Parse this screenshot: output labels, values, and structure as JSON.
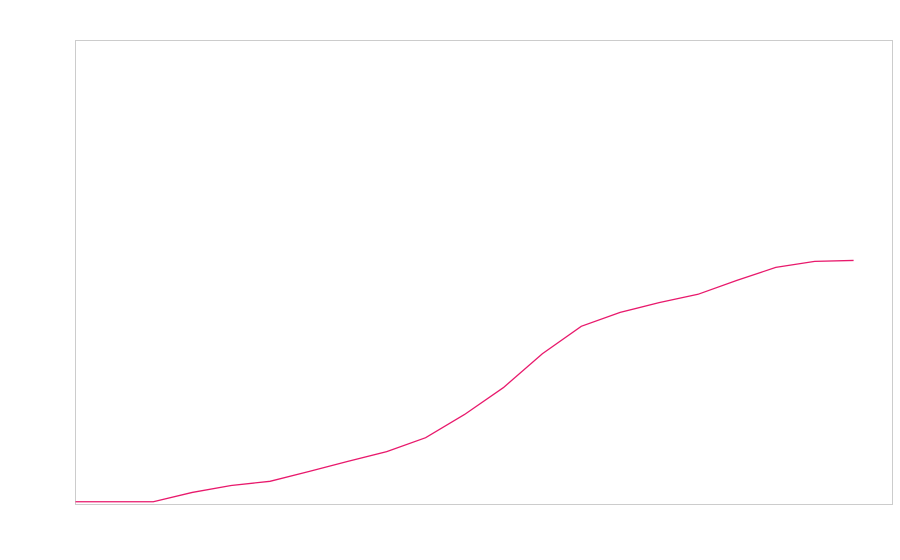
{
  "chart_data": {
    "type": "line",
    "x": [
      0,
      1,
      2,
      3,
      4,
      5,
      6,
      7,
      8,
      9,
      10,
      11,
      12,
      13,
      14,
      15,
      16,
      17,
      18,
      19,
      20
    ],
    "series": [
      {
        "color": "#e8196c",
        "values": [
          0.6,
          0.6,
          0.6,
          2.6,
          4.1,
          5.0,
          7.1,
          9.3,
          11.4,
          14.4,
          19.4,
          25.2,
          32.5,
          38.4,
          41.4,
          43.5,
          45.3,
          48.3,
          51.1,
          52.4,
          52.6
        ]
      }
    ],
    "xlim": [
      0,
      21
    ],
    "ylim": [
      0,
      100
    ]
  }
}
